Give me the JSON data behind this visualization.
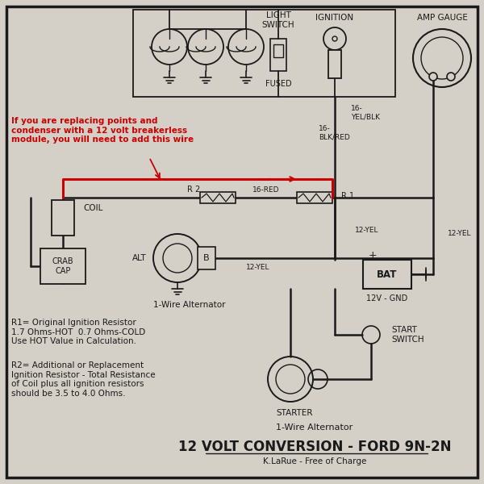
{
  "bg_color": "#d4d0c8",
  "border_color": "#000000",
  "title_small": "1-Wire Alternator",
  "title_large": "12 VOLT CONVERSION - FORD 9N-2N",
  "title_credit": "K.LaRue - Free of Charge",
  "wire_color_black": "#1a1a1a",
  "wire_color_red": "#cc0000",
  "note_color": "#cc0000",
  "note_text": "If you are replacing points and\ncondenser with a 12 volt breakerless\nmodule, you will need to add this wire",
  "r1_note": "R1= Original Ignition Resistor\n1.7 Ohms-HOT  0.7 Ohms-COLD\nUse HOT Value in Calculation.",
  "r2_note": "R2= Additional or Replacement\nIgnition Resistor - Total Resistance\nof Coil plus all ignition resistors\nshould be 3.5 to 4.0 Ohms.",
  "components": {
    "light_switch_label": "LIGHT\nSWITCH",
    "fused_label": "FUSED",
    "ignition_label": "IGNITION",
    "amp_gauge_label": "AMP GAUGE",
    "coil_label": "COIL",
    "crab_cap_label": "CRAB\nCAP",
    "alt_label": "ALT",
    "b_label": "B",
    "alternator_label": "1-Wire Alternator",
    "bat_label": "BAT",
    "gnd_label": "12V - GND",
    "start_switch_label": "START\nSWITCH",
    "starter_label": "STARTER",
    "r1_label": "R 1",
    "r2_label": "R 2",
    "wire_16red": "16-RED",
    "wire_12yel": "12-YEL",
    "wire_12yel2": "12-YEL",
    "wire_16yelblk": "16-\nYEL/BLK",
    "wire_16blkred": "16-\nBLK/RED"
  }
}
